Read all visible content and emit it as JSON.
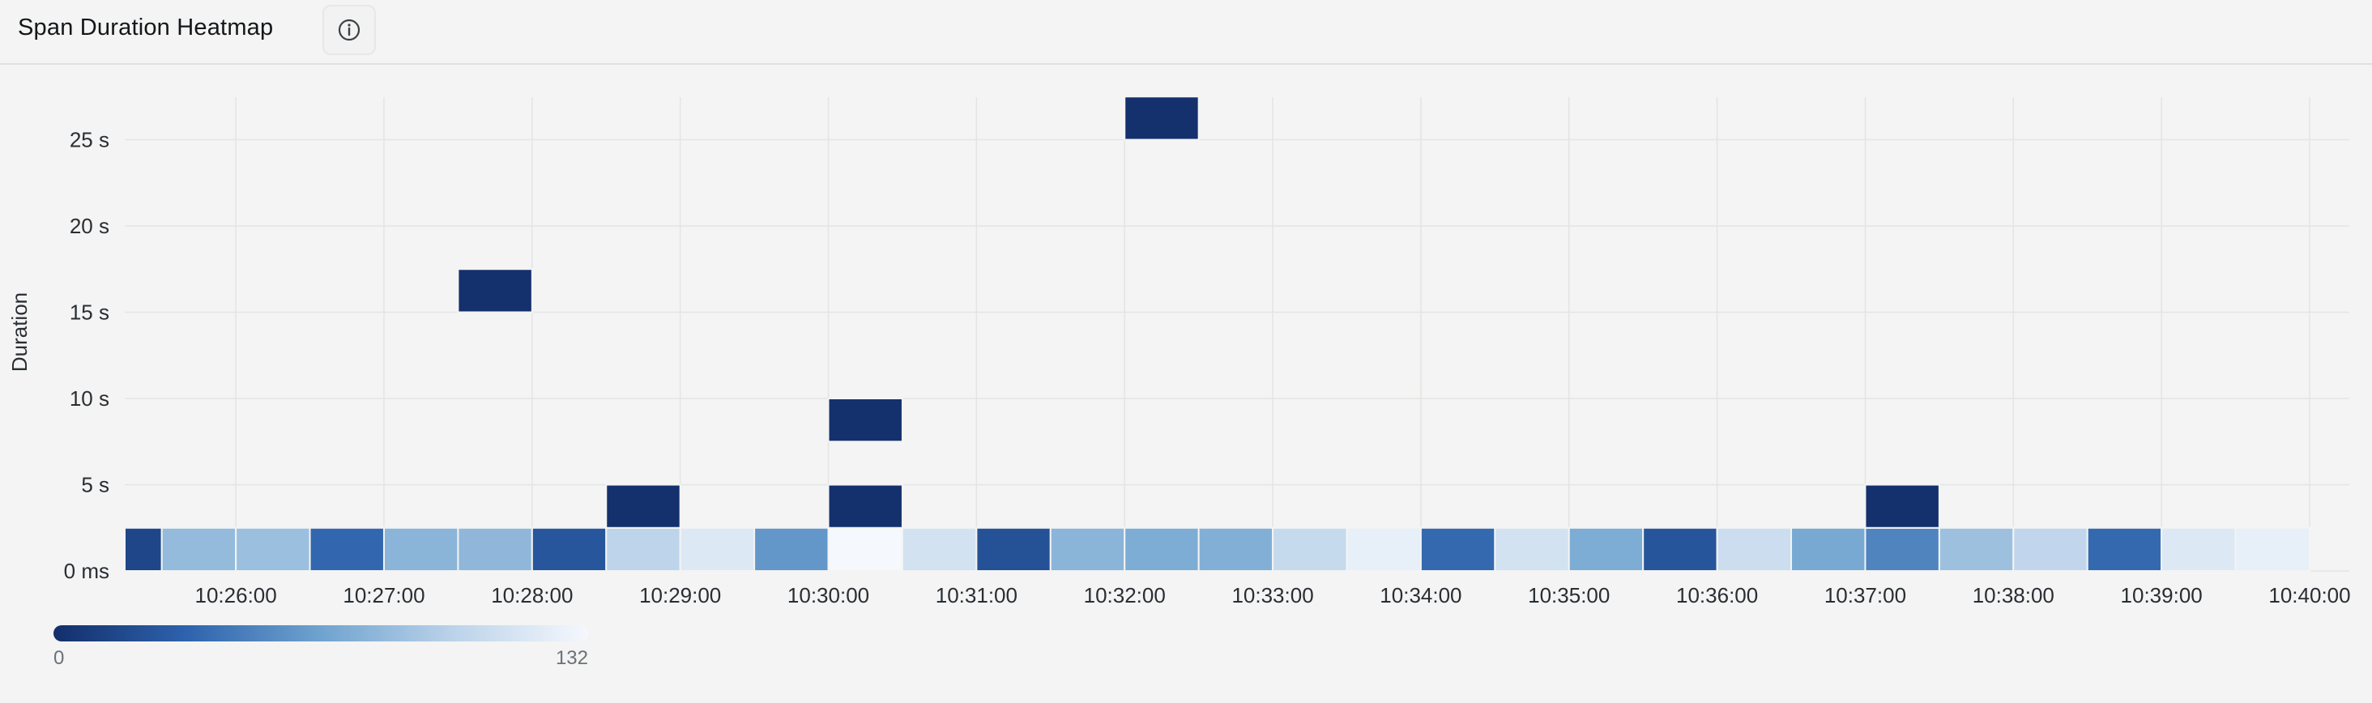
{
  "header": {
    "title": "Span Duration Heatmap",
    "info_icon": "info-circle-icon"
  },
  "chart_data": {
    "type": "heatmap",
    "title": "Span Duration Heatmap",
    "ylabel": "Duration",
    "xlabel": "",
    "y_unit": "s",
    "y_range_seconds": [
      0,
      27.5
    ],
    "y_ticks": [
      {
        "value": 0,
        "label": "0 ms"
      },
      {
        "value": 5,
        "label": "5 s"
      },
      {
        "value": 10,
        "label": "10 s"
      },
      {
        "value": 15,
        "label": "15 s"
      },
      {
        "value": 20,
        "label": "20 s"
      },
      {
        "value": 25,
        "label": "25 s"
      }
    ],
    "x_range": [
      "10:25:15",
      "10:40:00"
    ],
    "x_ticks": [
      "10:26:00",
      "10:27:00",
      "10:28:00",
      "10:29:00",
      "10:30:00",
      "10:31:00",
      "10:32:00",
      "10:33:00",
      "10:34:00",
      "10:35:00",
      "10:36:00",
      "10:37:00",
      "10:38:00",
      "10:39:00",
      "10:40:00"
    ],
    "bucket_width": "00:00:30",
    "bucket_height_seconds": 2.5,
    "color_scale": {
      "min": 0,
      "max": 132,
      "min_label": "0",
      "max_label": "132",
      "colors": [
        "#132e6b",
        "#2e63ad",
        "#6fa3cf",
        "#bcd3ea",
        "#f5f8fd"
      ]
    },
    "cells": [
      {
        "x": "10:25:15",
        "y": 0,
        "value": 15
      },
      {
        "x": "10:25:30",
        "y": 0,
        "value": 82
      },
      {
        "x": "10:26:00",
        "y": 0,
        "value": 85
      },
      {
        "x": "10:26:30",
        "y": 0,
        "value": 35
      },
      {
        "x": "10:27:00",
        "y": 0,
        "value": 78
      },
      {
        "x": "10:27:30",
        "y": 0,
        "value": 80
      },
      {
        "x": "10:28:00",
        "y": 0,
        "value": 25
      },
      {
        "x": "10:28:30",
        "y": 0,
        "value": 100
      },
      {
        "x": "10:29:00",
        "y": 0,
        "value": 118
      },
      {
        "x": "10:29:30",
        "y": 0,
        "value": 60
      },
      {
        "x": "10:30:00",
        "y": 0,
        "value": 132
      },
      {
        "x": "10:30:30",
        "y": 0,
        "value": 112
      },
      {
        "x": "10:31:00",
        "y": 0,
        "value": 22
      },
      {
        "x": "10:31:30",
        "y": 0,
        "value": 78
      },
      {
        "x": "10:32:00",
        "y": 0,
        "value": 72
      },
      {
        "x": "10:32:30",
        "y": 0,
        "value": 74
      },
      {
        "x": "10:33:00",
        "y": 0,
        "value": 105
      },
      {
        "x": "10:33:30",
        "y": 0,
        "value": 124
      },
      {
        "x": "10:34:00",
        "y": 0,
        "value": 36
      },
      {
        "x": "10:34:30",
        "y": 0,
        "value": 112
      },
      {
        "x": "10:35:00",
        "y": 0,
        "value": 72
      },
      {
        "x": "10:35:30",
        "y": 0,
        "value": 24
      },
      {
        "x": "10:36:00",
        "y": 0,
        "value": 108
      },
      {
        "x": "10:36:30",
        "y": 0,
        "value": 70
      },
      {
        "x": "10:37:00",
        "y": 0,
        "value": 50
      },
      {
        "x": "10:37:30",
        "y": 0,
        "value": 86
      },
      {
        "x": "10:38:00",
        "y": 0,
        "value": 102
      },
      {
        "x": "10:38:30",
        "y": 0,
        "value": 36
      },
      {
        "x": "10:39:00",
        "y": 0,
        "value": 118
      },
      {
        "x": "10:39:30",
        "y": 0,
        "value": 124
      },
      {
        "x": "10:28:30",
        "y": 2.5,
        "value": 1
      },
      {
        "x": "10:30:00",
        "y": 2.5,
        "value": 1
      },
      {
        "x": "10:37:00",
        "y": 2.5,
        "value": 1
      },
      {
        "x": "10:30:00",
        "y": 7.5,
        "value": 1
      },
      {
        "x": "10:27:30",
        "y": 15,
        "value": 1
      },
      {
        "x": "10:32:00",
        "y": 25,
        "value": 1
      }
    ],
    "grid": true,
    "legend": "bottom-left"
  }
}
